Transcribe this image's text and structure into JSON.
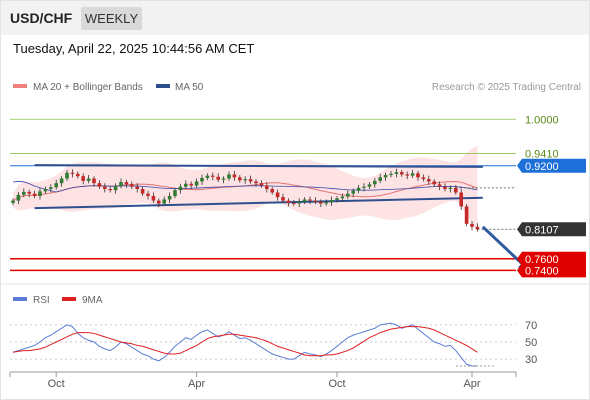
{
  "header": {
    "symbol": "USD/CHF",
    "timeframe": "WEEKLY",
    "datetime": "Tuesday, April 22, 2025 10:44:56 AM CET"
  },
  "colors": {
    "candle_up": "#2e7d32",
    "candle_down": "#c62828",
    "ma20": "#e57373",
    "bollinger_fill": "#fde3e3",
    "ma50": "#3949ab",
    "trendline": "#2f4f8f",
    "resistance": "#8bc34a",
    "pivot": "#1e6fd9",
    "support": "#e00000",
    "last_price": "#333333",
    "rsi": "#5c7cd6",
    "rsi_ma": "#e02020"
  },
  "chart_data": [
    {
      "type": "candlestick",
      "legend": [
        {
          "label": "MA 20 + Bollinger Bands",
          "color": "#f08080",
          "icon": "bar"
        },
        {
          "label": "MA 50",
          "color": "#2b4f8c",
          "icon": "bar"
        }
      ],
      "watermark": "Research © 2025 Trading Central",
      "x_tick_labels": [
        "Oct",
        "Apr",
        "Oct",
        "Apr"
      ],
      "levels": [
        {
          "label": "1.0000",
          "value": 1.0,
          "kind": "resistance",
          "style": "line"
        },
        {
          "label": "0.9410",
          "value": 0.941,
          "kind": "resistance",
          "style": "line"
        },
        {
          "label": "0.9200",
          "value": 0.92,
          "kind": "pivot",
          "style": "box"
        },
        {
          "label": "0.8107",
          "value": 0.8107,
          "kind": "last",
          "style": "box"
        },
        {
          "label": "0.7600",
          "value": 0.76,
          "kind": "support",
          "style": "box"
        },
        {
          "label": "0.7400",
          "value": 0.74,
          "kind": "support",
          "style": "box"
        }
      ],
      "ylim": [
        0.72,
        1.04
      ],
      "weeks": 87,
      "tick_week_index": [
        8,
        34,
        60,
        85
      ],
      "closes": [
        0.86,
        0.87,
        0.875,
        0.872,
        0.868,
        0.876,
        0.88,
        0.883,
        0.89,
        0.898,
        0.908,
        0.906,
        0.902,
        0.894,
        0.898,
        0.89,
        0.884,
        0.88,
        0.878,
        0.885,
        0.892,
        0.888,
        0.884,
        0.88,
        0.872,
        0.868,
        0.86,
        0.855,
        0.862,
        0.868,
        0.878,
        0.884,
        0.889,
        0.886,
        0.893,
        0.899,
        0.903,
        0.901,
        0.896,
        0.898,
        0.905,
        0.9,
        0.895,
        0.897,
        0.893,
        0.89,
        0.886,
        0.88,
        0.874,
        0.866,
        0.86,
        0.856,
        0.855,
        0.858,
        0.862,
        0.86,
        0.858,
        0.855,
        0.857,
        0.861,
        0.864,
        0.867,
        0.872,
        0.877,
        0.882,
        0.884,
        0.888,
        0.894,
        0.9,
        0.904,
        0.906,
        0.909,
        0.905,
        0.903,
        0.907,
        0.9,
        0.897,
        0.893,
        0.888,
        0.884,
        0.88,
        0.882,
        0.874,
        0.85,
        0.82,
        0.815,
        0.8107
      ],
      "trendlines": [
        {
          "name": "upper",
          "from": [
            4,
            0.921
          ],
          "to": [
            87,
            0.918
          ]
        },
        {
          "name": "lower",
          "from": [
            4,
            0.847
          ],
          "to": [
            87,
            0.865
          ]
        }
      ],
      "projection": {
        "from": [
          87,
          0.815
        ],
        "to": [
          95,
          0.745
        ]
      }
    },
    {
      "type": "line",
      "legend": [
        {
          "label": "RSI",
          "color": "#5b7fd6",
          "icon": "bar"
        },
        {
          "label": "9MA",
          "color": "#e02020",
          "icon": "bar"
        }
      ],
      "y_tick_labels": [
        "70",
        "50",
        "30"
      ],
      "ylim": [
        15,
        85
      ],
      "rsi": [
        38,
        40,
        42,
        44,
        46,
        50,
        55,
        58,
        62,
        66,
        70,
        68,
        60,
        55,
        52,
        50,
        45,
        42,
        40,
        44,
        50,
        48,
        44,
        40,
        36,
        34,
        30,
        28,
        32,
        38,
        45,
        50,
        55,
        53,
        58,
        62,
        64,
        60,
        56,
        58,
        62,
        58,
        54,
        55,
        52,
        48,
        44,
        40,
        36,
        34,
        32,
        30,
        30,
        34,
        38,
        36,
        35,
        33,
        36,
        40,
        45,
        50,
        55,
        58,
        60,
        62,
        64,
        66,
        70,
        71,
        72,
        70,
        66,
        68,
        70,
        65,
        60,
        55,
        50,
        48,
        45,
        46,
        40,
        32,
        24,
        22,
        22
      ],
      "ma9": [
        38,
        39,
        40,
        40,
        41,
        42,
        44,
        47,
        50,
        53,
        56,
        59,
        61,
        61,
        61,
        60,
        58,
        56,
        54,
        52,
        50,
        49,
        48,
        46,
        45,
        43,
        41,
        39,
        37,
        36,
        36,
        37,
        40,
        43,
        46,
        50,
        54,
        56,
        57,
        58,
        59,
        59,
        58,
        57,
        56,
        55,
        53,
        51,
        48,
        45,
        43,
        41,
        39,
        37,
        35,
        34,
        34,
        34,
        35,
        35,
        36,
        38,
        40,
        43,
        47,
        51,
        55,
        58,
        61,
        63,
        65,
        66,
        67,
        68,
        68,
        68,
        67,
        66,
        64,
        61,
        58,
        55,
        52,
        49,
        46,
        42,
        38
      ]
    }
  ]
}
